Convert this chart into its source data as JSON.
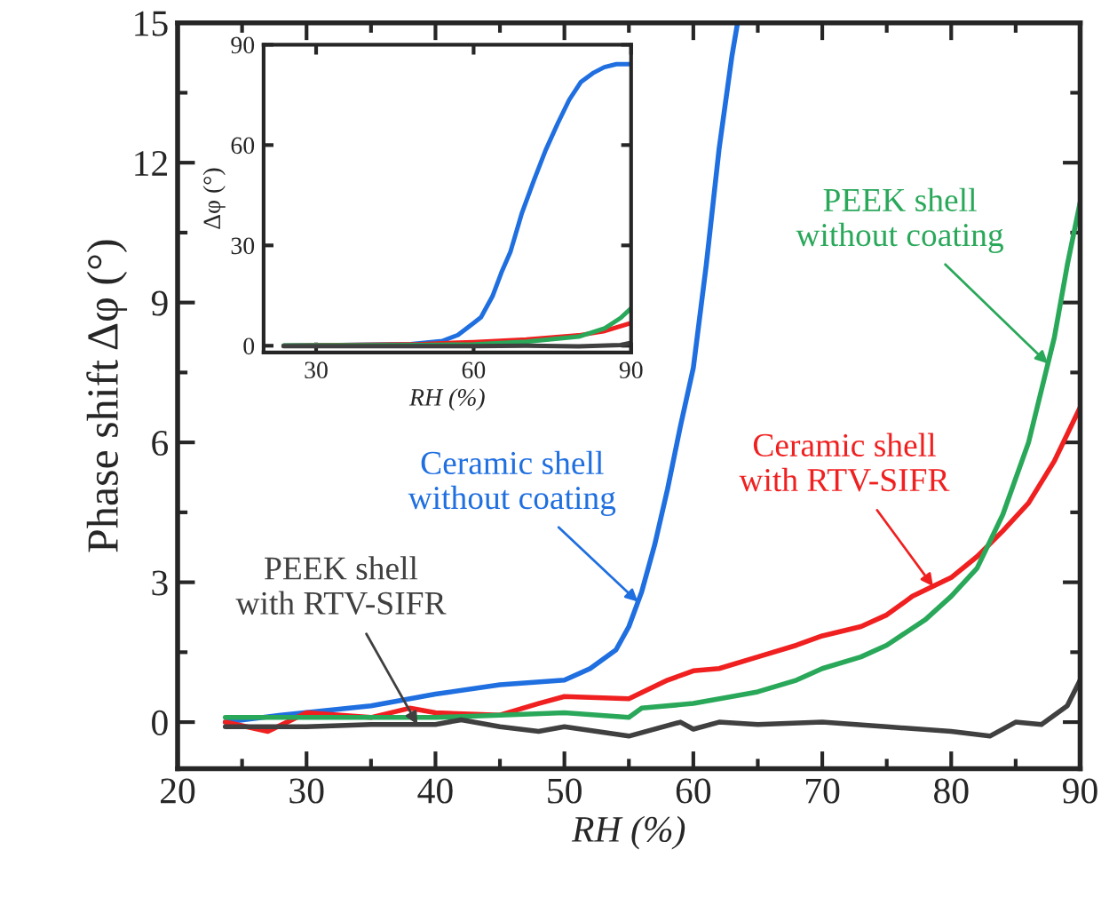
{
  "chart_data": [
    {
      "type": "line",
      "xlabel": "RH (%)",
      "ylabel": "Phase shift Δφ (°)",
      "xlim": [
        20,
        90
      ],
      "ylim": [
        -1,
        15
      ],
      "xticks": [
        20,
        30,
        40,
        50,
        60,
        70,
        80,
        90
      ],
      "yticks": [
        0,
        3,
        6,
        9,
        12,
        15
      ],
      "grid": false,
      "legend": false,
      "marker": "none",
      "line_style": "solid",
      "series": [
        {
          "color": "#1f6fe0",
          "x": [
            23.7,
            28,
            35,
            40,
            45,
            50,
            52,
            54,
            55,
            56,
            57,
            58,
            59,
            60,
            61,
            62,
            63,
            63.4
          ],
          "values": [
            0.0,
            0.15,
            0.35,
            0.6,
            0.8,
            0.9,
            1.15,
            1.55,
            2.05,
            2.8,
            3.8,
            5.0,
            6.35,
            7.6,
            9.8,
            12.3,
            14.3,
            14.95
          ]
        },
        {
          "color": "#f02020",
          "x": [
            23.7,
            27,
            30,
            35,
            38,
            40,
            45,
            48,
            50,
            55,
            58,
            60,
            62,
            65,
            68,
            70,
            73,
            75,
            77,
            80,
            82,
            84,
            86,
            88,
            90
          ],
          "values": [
            0.0,
            -0.2,
            0.2,
            0.1,
            0.3,
            0.2,
            0.15,
            0.4,
            0.55,
            0.5,
            0.9,
            1.1,
            1.15,
            1.4,
            1.65,
            1.85,
            2.05,
            2.3,
            2.7,
            3.1,
            3.55,
            4.1,
            4.7,
            5.6,
            6.75
          ]
        },
        {
          "color": "#2aa85a",
          "x": [
            23.7,
            30,
            35,
            40,
            45,
            50,
            55,
            56,
            60,
            63,
            65,
            68,
            70,
            73,
            75,
            78,
            80,
            82,
            84,
            86,
            88,
            89,
            90
          ],
          "values": [
            0.1,
            0.1,
            0.1,
            0.1,
            0.15,
            0.2,
            0.1,
            0.3,
            0.4,
            0.55,
            0.65,
            0.9,
            1.15,
            1.4,
            1.65,
            2.2,
            2.7,
            3.3,
            4.45,
            6.0,
            8.25,
            9.8,
            11.15
          ]
        },
        {
          "color": "#404040",
          "x": [
            23.7,
            30,
            35,
            40,
            42,
            45,
            48,
            50,
            55,
            59,
            60,
            62,
            65,
            70,
            75,
            80,
            83,
            85,
            87,
            88,
            89,
            90
          ],
          "values": [
            -0.1,
            -0.1,
            -0.05,
            -0.05,
            0.05,
            -0.1,
            -0.2,
            -0.1,
            -0.3,
            0.0,
            -0.15,
            0.0,
            -0.05,
            0.0,
            -0.1,
            -0.2,
            -0.3,
            0.0,
            -0.05,
            0.15,
            0.35,
            0.9
          ]
        }
      ],
      "annotations": [
        {
          "text": "Ceramic shell\nwithout coating",
          "x": 55.7,
          "y": 2.58
        },
        {
          "text": "Ceramic shell\nwith RTV-SIFR",
          "x": 78.6,
          "y": 2.91
        },
        {
          "text": "PEEK shell\nwithout coating",
          "x": 87.5,
          "y": 7.69
        },
        {
          "text": "PEEK shell\nwith RTV-SIFR",
          "x": 38.6,
          "y": -0.05
        }
      ]
    },
    {
      "type": "line",
      "xlabel": "RH (%)",
      "ylabel": "Δφ (°)",
      "xlim": [
        20,
        90
      ],
      "ylim": [
        -2,
        90
      ],
      "xticks": [
        30,
        60,
        90
      ],
      "yticks": [
        0,
        30,
        60,
        90
      ],
      "grid": false,
      "legend": false,
      "marker": "none",
      "line_style": "solid",
      "series": [
        {
          "color": "#1f6fe0",
          "x": [
            23.8,
            48,
            54,
            57,
            60,
            61.4,
            63.6,
            65.3,
            67,
            69.2,
            71.5,
            73.7,
            76,
            78.2,
            80.4,
            82.7,
            84.9,
            87.2,
            90
          ],
          "values": [
            0,
            0.5,
            1.4,
            3.2,
            6.8,
            8.5,
            14.8,
            21.9,
            28,
            39.7,
            49.5,
            58.4,
            66.4,
            73.5,
            78.8,
            81.5,
            83.3,
            84.2,
            84.2
          ]
        },
        {
          "color": "#f02020",
          "x": [
            23.8,
            50,
            60,
            70,
            80,
            85,
            90
          ],
          "values": [
            0,
            0.5,
            1.1,
            1.9,
            3.1,
            4.4,
            6.8
          ]
        },
        {
          "color": "#2aa85a",
          "x": [
            23.8,
            50,
            60,
            70,
            80,
            85,
            88,
            90
          ],
          "values": [
            0.1,
            0.2,
            0.4,
            1.2,
            2.7,
            5.2,
            8.3,
            11.2
          ]
        },
        {
          "color": "#404040",
          "x": [
            23.8,
            50,
            60,
            70,
            80,
            88,
            90
          ],
          "values": [
            -0.1,
            -0.1,
            -0.1,
            0.0,
            -0.2,
            0.2,
            0.9
          ]
        }
      ]
    }
  ]
}
